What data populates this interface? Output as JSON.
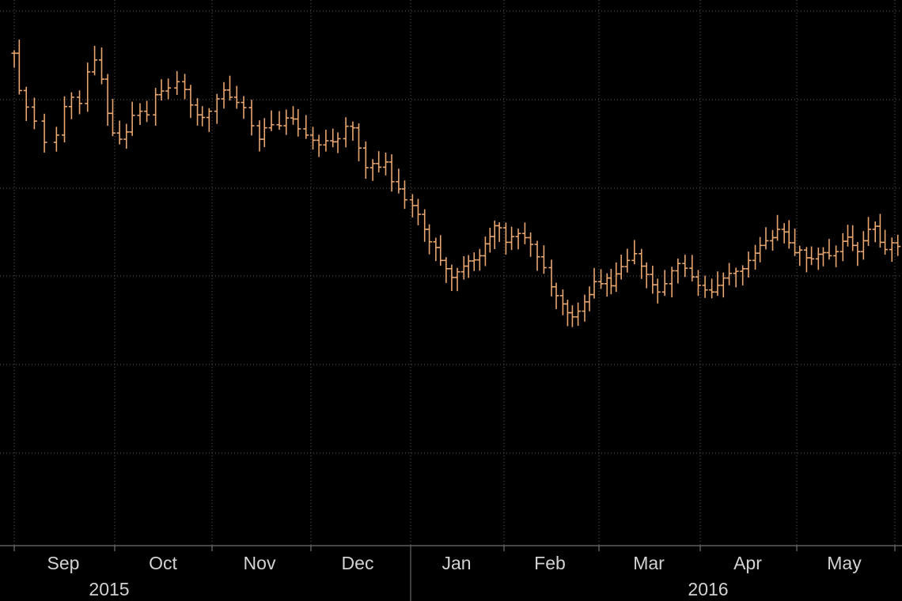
{
  "chart_data": {
    "type": "line",
    "style": "ohlc-bars",
    "title": "",
    "xlabel": "",
    "ylabel": "",
    "y_axis_labels_visible": false,
    "grid": true,
    "legend": "none",
    "colors": {
      "background": "#000000",
      "series": "#e8a670",
      "grid": "#5a5a5a",
      "text": "#d2d2d2"
    },
    "month_labels": [
      "Sep",
      "Oct",
      "Nov",
      "Dec",
      "Jan",
      "Feb",
      "Mar",
      "Apr",
      "May"
    ],
    "year_labels": [
      "2015",
      "2016"
    ],
    "series": [
      {
        "x_start": "2015-08-18",
        "x_end": "2016-05-31",
        "y_relative_range": [
          0,
          100
        ],
        "values": [
          [
            0,
            85.6
          ],
          [
            0.05,
            78.4
          ],
          [
            0.12,
            75.2
          ],
          [
            0.2,
            72.5
          ],
          [
            0.3,
            68.4
          ],
          [
            0.42,
            69.8
          ],
          [
            0.5,
            75.3
          ],
          [
            0.57,
            77.1
          ],
          [
            0.65,
            75.9
          ],
          [
            0.73,
            82.0
          ],
          [
            0.8,
            84.3
          ],
          [
            0.87,
            80.6
          ],
          [
            0.93,
            74.0
          ],
          [
            0.98,
            70.2
          ],
          [
            1.05,
            69.0
          ],
          [
            1.12,
            70.4
          ],
          [
            1.18,
            73.6
          ],
          [
            1.26,
            74.4
          ],
          [
            1.33,
            73.7
          ],
          [
            1.42,
            77.6
          ],
          [
            1.48,
            78.3
          ],
          [
            1.55,
            78.9
          ],
          [
            1.64,
            80.1
          ],
          [
            1.72,
            78.6
          ],
          [
            1.78,
            75.6
          ],
          [
            1.85,
            73.7
          ],
          [
            1.9,
            73.2
          ],
          [
            1.97,
            74.4
          ],
          [
            2.05,
            76.8
          ],
          [
            2.12,
            78.5
          ],
          [
            2.18,
            77.1
          ],
          [
            2.25,
            76.1
          ],
          [
            2.32,
            75.1
          ],
          [
            2.4,
            71.6
          ],
          [
            2.48,
            69.0
          ],
          [
            2.53,
            71.2
          ],
          [
            2.6,
            71.8
          ],
          [
            2.68,
            71.6
          ],
          [
            2.75,
            73.1
          ],
          [
            2.82,
            72.9
          ],
          [
            2.87,
            71.0
          ],
          [
            2.95,
            69.8
          ],
          [
            3.02,
            68.8
          ],
          [
            3.08,
            67.9
          ],
          [
            3.15,
            68.7
          ],
          [
            3.22,
            68.5
          ],
          [
            3.27,
            69.1
          ],
          [
            3.35,
            71.5
          ],
          [
            3.42,
            71.2
          ],
          [
            3.48,
            67.3
          ],
          [
            3.55,
            63.5
          ],
          [
            3.62,
            64.3
          ],
          [
            3.68,
            63.6
          ],
          [
            3.75,
            64.6
          ],
          [
            3.81,
            60.8
          ],
          [
            3.88,
            59.4
          ],
          [
            3.94,
            57.3
          ],
          [
            4.02,
            56.2
          ],
          [
            4.08,
            54.5
          ],
          [
            4.15,
            51.6
          ],
          [
            4.2,
            49.2
          ],
          [
            4.27,
            48.1
          ],
          [
            4.32,
            45.6
          ],
          [
            4.38,
            44.0
          ],
          [
            4.44,
            42.3
          ],
          [
            4.5,
            43.4
          ],
          [
            4.57,
            44.5
          ],
          [
            4.62,
            45.5
          ],
          [
            4.68,
            45.7
          ],
          [
            4.74,
            46.5
          ],
          [
            4.8,
            48.8
          ],
          [
            4.85,
            50.2
          ],
          [
            4.9,
            52.3
          ],
          [
            4.95,
            51.9
          ],
          [
            5.02,
            49.1
          ],
          [
            5.08,
            50.2
          ],
          [
            5.15,
            50.8
          ],
          [
            5.22,
            50.0
          ],
          [
            5.28,
            48.7
          ],
          [
            5.35,
            46.3
          ],
          [
            5.42,
            44.2
          ],
          [
            5.5,
            40.5
          ],
          [
            5.55,
            38.8
          ],
          [
            5.62,
            37.2
          ],
          [
            5.67,
            35.5
          ],
          [
            5.72,
            34.7
          ],
          [
            5.78,
            35.8
          ],
          [
            5.85,
            37.6
          ],
          [
            5.9,
            39.0
          ],
          [
            5.95,
            41.5
          ],
          [
            6.02,
            41.1
          ],
          [
            6.08,
            42.2
          ],
          [
            6.12,
            40.7
          ],
          [
            6.17,
            43.0
          ],
          [
            6.22,
            44.4
          ],
          [
            6.28,
            45.6
          ],
          [
            6.35,
            46.9
          ],
          [
            6.42,
            44.5
          ],
          [
            6.47,
            42.9
          ],
          [
            6.53,
            40.9
          ],
          [
            6.58,
            39.5
          ],
          [
            6.65,
            41.1
          ],
          [
            6.72,
            43.6
          ],
          [
            6.78,
            45.0
          ],
          [
            6.85,
            44.1
          ],
          [
            6.92,
            42.4
          ],
          [
            6.98,
            40.8
          ],
          [
            7.05,
            39.9
          ],
          [
            7.12,
            39.5
          ],
          [
            7.18,
            40.8
          ],
          [
            7.24,
            42.2
          ],
          [
            7.3,
            43.1
          ],
          [
            7.37,
            43.5
          ],
          [
            7.44,
            44.0
          ],
          [
            7.5,
            45.6
          ],
          [
            7.57,
            47.0
          ],
          [
            7.62,
            48.5
          ],
          [
            7.68,
            49.4
          ],
          [
            7.75,
            50.0
          ],
          [
            7.8,
            51.6
          ],
          [
            7.87,
            51.1
          ],
          [
            7.92,
            49.0
          ],
          [
            7.98,
            47.1
          ],
          [
            8.03,
            47.6
          ],
          [
            8.1,
            46.1
          ],
          [
            8.15,
            45.9
          ],
          [
            8.22,
            46.8
          ],
          [
            8.27,
            47.1
          ],
          [
            8.33,
            46.5
          ],
          [
            8.4,
            47.3
          ],
          [
            8.47,
            49.3
          ],
          [
            8.52,
            50.1
          ],
          [
            8.57,
            48.5
          ],
          [
            8.62,
            47.3
          ],
          [
            8.68,
            49.4
          ],
          [
            8.73,
            51.6
          ],
          [
            8.8,
            52.2
          ],
          [
            8.85,
            49.1
          ],
          [
            8.9,
            47.7
          ],
          [
            8.97,
            49.0
          ],
          [
            9.03,
            48.3
          ],
          [
            9.09,
            46.7
          ]
        ]
      }
    ]
  }
}
